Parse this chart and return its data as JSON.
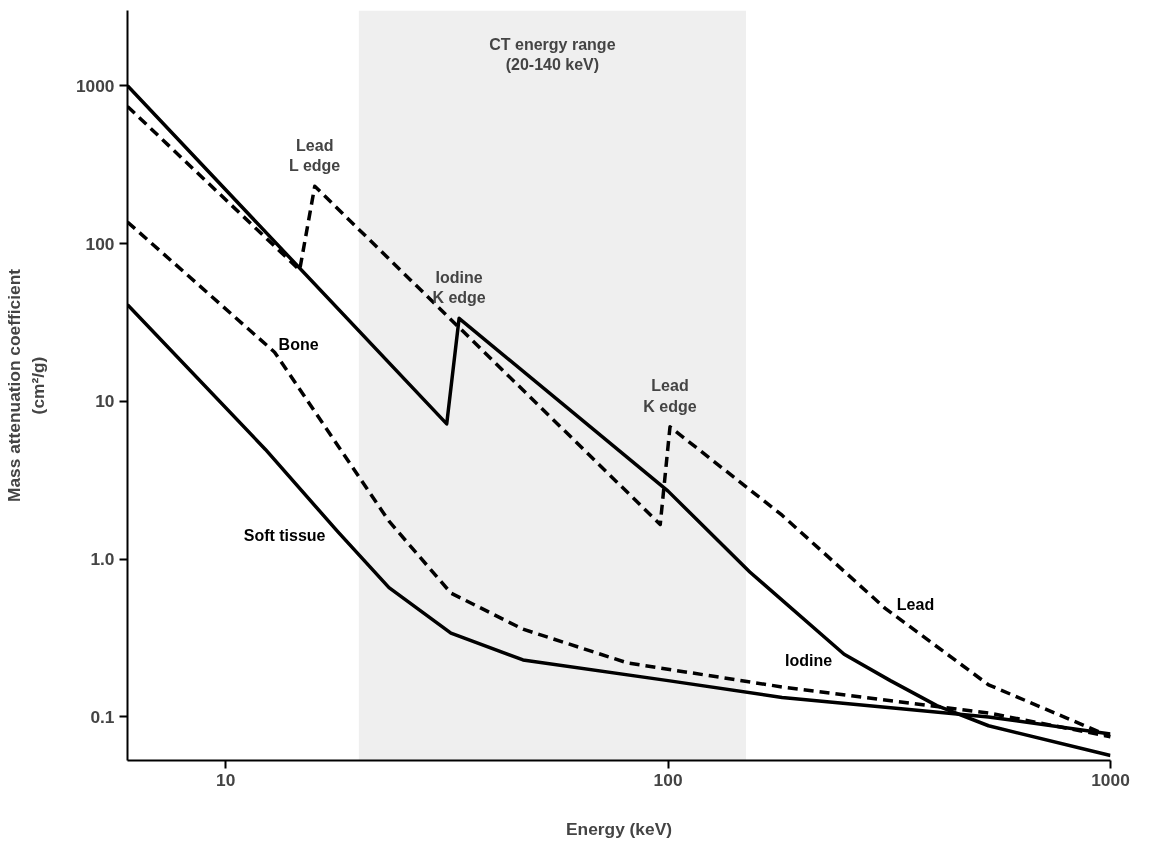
{
  "chart_data": {
    "type": "line",
    "xlabel": "Energy (keV)",
    "ylabel": "Mass attenuation coefficient\n(cm²/g)",
    "log": "xy",
    "grid": false,
    "xlim": [
      6,
      1000
    ],
    "ylim": [
      0.053,
      3000
    ],
    "xticks": [
      10,
      100,
      1000
    ],
    "yticks": [
      1000,
      100,
      10,
      {
        "value": 1,
        "label": "1.0"
      },
      0.1
    ],
    "series": [
      {
        "name": "Lead",
        "color": "#000000",
        "line_style": "dashed",
        "x": [
          6,
          14.7,
          15.9,
          96,
          101,
          181,
          309,
          530,
          1000
        ],
        "values": [
          740,
          68,
          231,
          1.66,
          6.9,
          1.9,
          0.49,
          0.16,
          0.075
        ]
      },
      {
        "name": "Iodine",
        "color": "#000000",
        "line_style": "solid",
        "x": [
          6,
          31.6,
          33.7,
          100,
          153,
          250,
          318,
          405,
          530,
          1000
        ],
        "values": [
          1000,
          7.2,
          33.6,
          2.7,
          0.83,
          0.25,
          0.17,
          0.118,
          0.088,
          0.057
        ]
      },
      {
        "name": "Bone",
        "color": "#000000",
        "line_style": "dashed",
        "x": [
          6,
          12.9,
          23.4,
          32.3,
          47,
          81,
          181,
          530,
          1000
        ],
        "values": [
          137,
          20.5,
          1.74,
          0.61,
          0.36,
          0.22,
          0.155,
          0.106,
          0.075
        ]
      },
      {
        "name": "Soft tissue",
        "color": "#000000",
        "line_style": "solid",
        "x": [
          6,
          12.3,
          17.9,
          23.4,
          32.3,
          47,
          100,
          181,
          530,
          1000
        ],
        "values": [
          41,
          4.96,
          1.5,
          0.66,
          0.34,
          0.23,
          0.17,
          0.133,
          0.1,
          0.078
        ]
      }
    ],
    "bands": [
      {
        "axis": "x",
        "from": 20,
        "to": 150,
        "label": "CT energy range\n(20-140 keV)",
        "color": "#efefef"
      }
    ],
    "annotations": [
      {
        "text": "Lead\nL edge",
        "x": 15.9,
        "y": 231
      },
      {
        "text": "Iodine\nK edge",
        "x": 33.7,
        "y": 33.6
      },
      {
        "text": "Lead\nK edge",
        "x": 101,
        "y": 6.9
      }
    ]
  }
}
